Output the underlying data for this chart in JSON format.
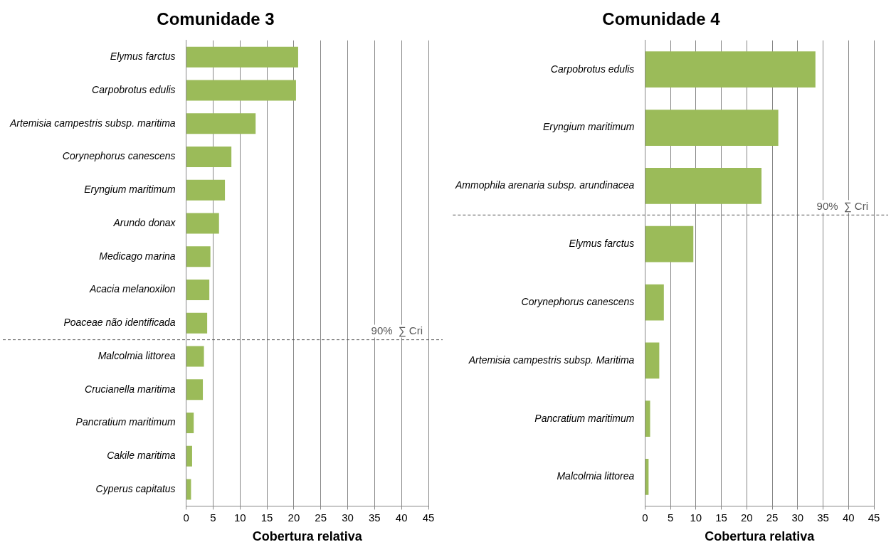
{
  "chart_data": [
    {
      "type": "bar",
      "orientation": "horizontal",
      "title": "Comunidade 3",
      "xlabel": "Cobertura relativa",
      "categories": [
        "Elymus farctus",
        "Carpobrotus edulis",
        "Artemisia campestris subsp. maritima",
        "Corynephorus canescens",
        "Eryngium maritimum",
        "Arundo donax",
        "Medicago marina",
        "Acacia melanoxilon",
        "Poaceae não identificada",
        "Malcolmia littorea",
        "Crucianella maritima",
        "Pancratium maritimum",
        "Cakile maritima",
        "Cyperus capitatus"
      ],
      "values": [
        20.8,
        20.4,
        12.9,
        8.4,
        7.2,
        6.1,
        4.5,
        4.3,
        3.9,
        3.3,
        3.1,
        1.4,
        1.1,
        0.9
      ],
      "color": "#9bbb59",
      "xlim": [
        0,
        45
      ],
      "xticks": [
        0,
        5,
        10,
        15,
        20,
        25,
        30,
        35,
        40,
        45
      ],
      "grid": "x",
      "legend": false,
      "ref_lines": [
        {
          "axis": "y",
          "value": "Poaceae não identificada",
          "label": "90%  ∑ Cri",
          "color": "#595959",
          "line_style": "dashed"
        }
      ]
    },
    {
      "type": "bar",
      "orientation": "horizontal",
      "title": "Comunidade 4",
      "xlabel": "Cobertura relativa",
      "categories": [
        "Carpobrotus edulis",
        "Eryngium maritimum",
        "Ammophila arenaria subsp. arundinacea",
        "Elymus farctus",
        "Corynephorus canescens",
        "Artemisia campestris subsp. Maritima",
        "Pancratium maritimum",
        "Malcolmia littorea"
      ],
      "values": [
        33.5,
        26.2,
        22.9,
        9.5,
        3.7,
        2.8,
        1.0,
        0.7
      ],
      "color": "#9bbb59",
      "xlim": [
        0,
        45
      ],
      "xticks": [
        0,
        5,
        10,
        15,
        20,
        25,
        30,
        35,
        40,
        45
      ],
      "grid": "x",
      "legend": false,
      "ref_lines": [
        {
          "axis": "y",
          "value": "Ammophila arenaria subsp. arundinacea",
          "label": "90%  ∑ Cri",
          "color": "#595959",
          "line_style": "dashed"
        }
      ]
    }
  ]
}
